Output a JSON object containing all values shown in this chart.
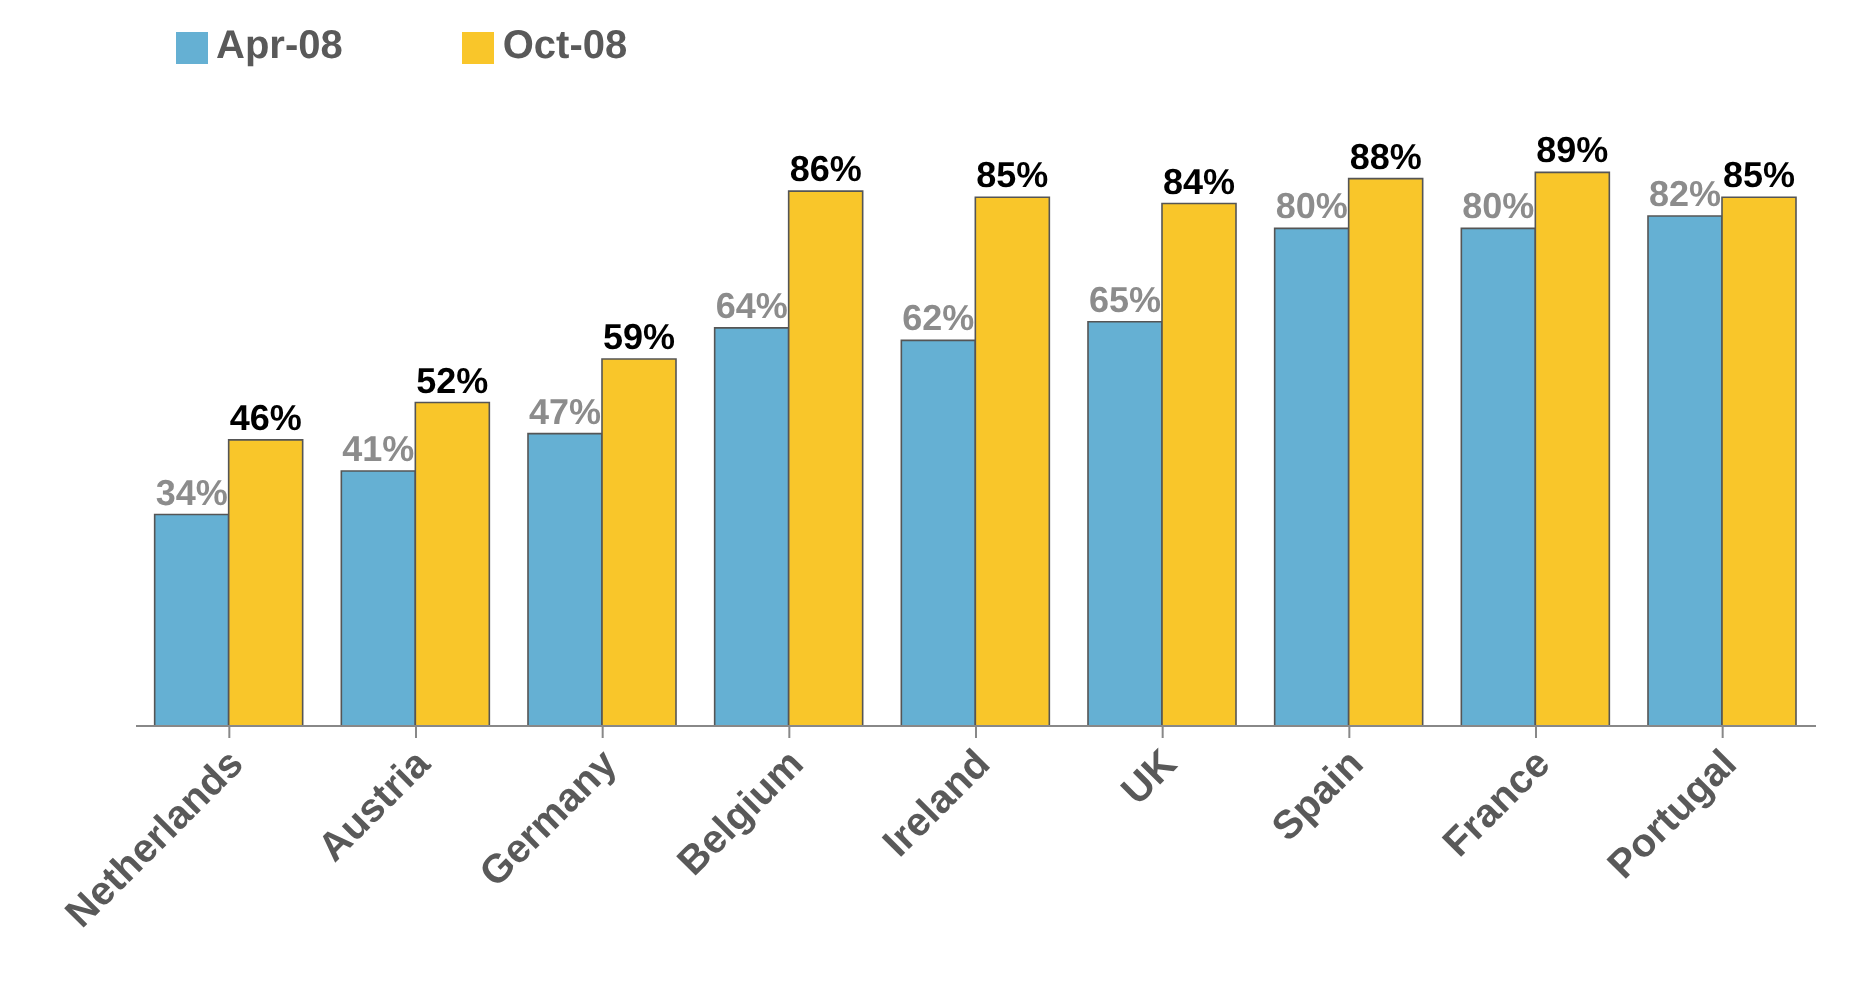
{
  "chart_data": {
    "type": "bar",
    "categories": [
      "Netherlands",
      "Austria",
      "Germany",
      "Belgium",
      "Ireland",
      "UK",
      "Spain",
      "France",
      "Portugal"
    ],
    "series": [
      {
        "name": "Apr-08",
        "color": "#65b0d3",
        "values": [
          34,
          41,
          47,
          64,
          62,
          65,
          80,
          80,
          82
        ],
        "value_labels": [
          "34%",
          "41%",
          "47%",
          "64%",
          "62%",
          "65%",
          "80%",
          "80%",
          "82%"
        ]
      },
      {
        "name": "Oct-08",
        "color": "#f9c62a",
        "values": [
          46,
          52,
          59,
          86,
          85,
          84,
          88,
          89,
          85
        ],
        "value_labels": [
          "46%",
          "52%",
          "59%",
          "86%",
          "85%",
          "84%",
          "88%",
          "89%",
          "85%"
        ]
      }
    ],
    "legend": "top left",
    "grid": false
  }
}
